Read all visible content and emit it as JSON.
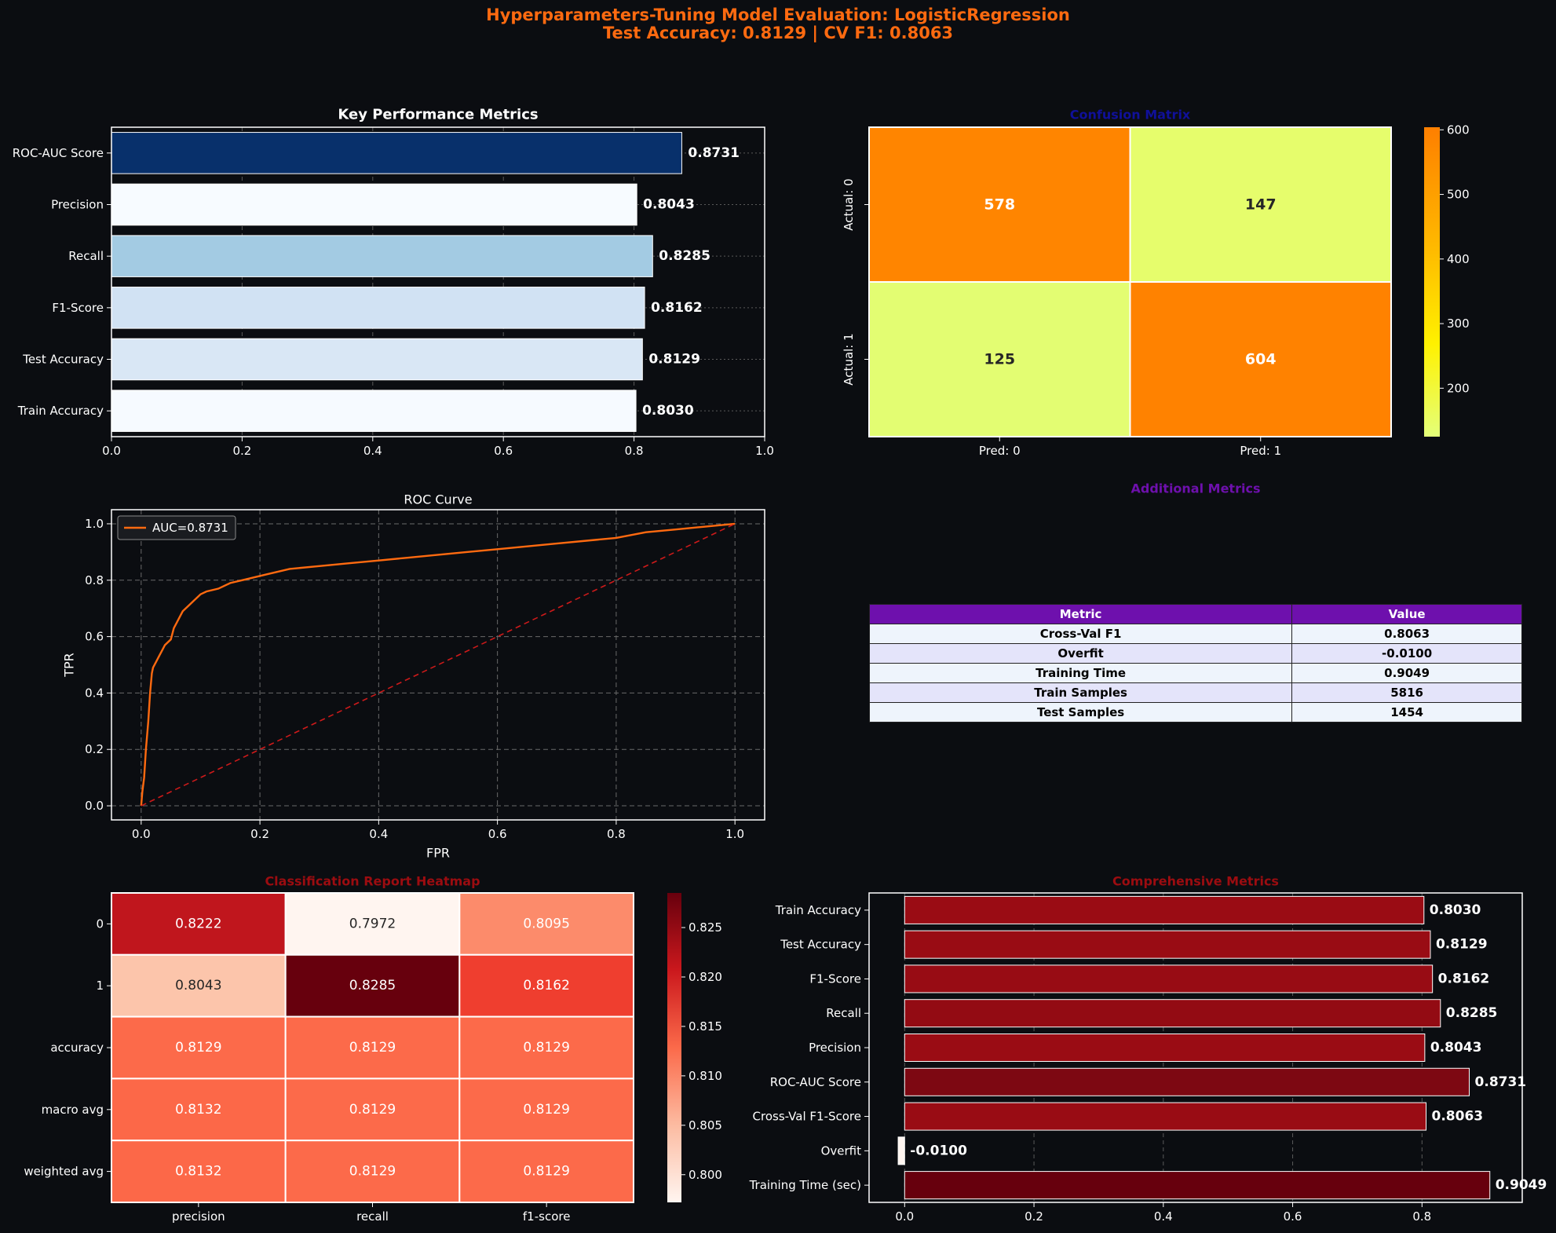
{
  "suptitle": {
    "line1": "Hyperparameters-Tuning Model Evaluation: LogisticRegression",
    "line2": "Test Accuracy: 0.8129 | CV F1: 0.8063"
  },
  "chart_data": [
    {
      "type": "bar",
      "title": "Key Performance Metrics",
      "orientation": "horizontal",
      "categories": [
        "ROC-AUC Score",
        "Precision",
        "Recall",
        "F1-Score",
        "Test Accuracy",
        "Train Accuracy"
      ],
      "values": [
        0.8731,
        0.8043,
        0.8285,
        0.8162,
        0.8129,
        0.803
      ],
      "value_labels": [
        "0.8731",
        "0.8043",
        "0.8285",
        "0.8162",
        "0.8129",
        "0.8030"
      ],
      "colors": [
        "#08306b",
        "#f7fbff",
        "#a3cbe3",
        "#d1e2f3",
        "#d9e7f5",
        "#f6faff"
      ],
      "xlim": [
        0,
        1.0
      ],
      "xticks": [
        "0.0",
        "0.2",
        "0.4",
        "0.6",
        "0.8",
        "1.0"
      ],
      "grid": true
    },
    {
      "type": "heatmap",
      "title": "Confusion Matrix",
      "title_color": "#10109a",
      "rows": [
        "Actual: 0",
        "Actual: 1"
      ],
      "cols": [
        "Pred: 0",
        "Pred: 1"
      ],
      "values": [
        [
          578,
          147
        ],
        [
          125,
          604
        ]
      ],
      "cell_colors": [
        [
          "#ff8500",
          "#e6fd6c"
        ],
        [
          "#e3fd72",
          "#ff8200"
        ]
      ],
      "colorbar": {
        "ticks": [
          "600",
          "500",
          "400",
          "300",
          "200"
        ],
        "tick_values": [
          600,
          500,
          400,
          300,
          200
        ],
        "vmin": 125,
        "vmax": 604
      }
    },
    {
      "type": "line",
      "title": "ROC Curve",
      "xlabel": "FPR",
      "ylabel": "TPR",
      "xlim": [
        -0.05,
        1.05
      ],
      "ylim": [
        -0.05,
        1.05
      ],
      "xticks": [
        "0.0",
        "0.2",
        "0.4",
        "0.6",
        "0.8",
        "1.0"
      ],
      "yticks": [
        "0.0",
        "0.2",
        "0.4",
        "0.6",
        "0.8",
        "1.0"
      ],
      "grid": true,
      "legend": "upper left",
      "series": [
        {
          "name": "AUC=0.8731",
          "color": "#ff6a10",
          "x": [
            0,
            0.002,
            0.005,
            0.008,
            0.012,
            0.015,
            0.018,
            0.02,
            0.025,
            0.03,
            0.035,
            0.04,
            0.05,
            0.055,
            0.06,
            0.065,
            0.07,
            0.08,
            0.09,
            0.1,
            0.11,
            0.13,
            0.15,
            0.17,
            0.19,
            0.21,
            0.25,
            0.3,
            0.35,
            0.4,
            0.45,
            0.5,
            0.55,
            0.6,
            0.65,
            0.7,
            0.75,
            0.8,
            0.85,
            0.9,
            0.95,
            1.0
          ],
          "y": [
            0,
            0.05,
            0.1,
            0.2,
            0.3,
            0.4,
            0.47,
            0.49,
            0.51,
            0.53,
            0.55,
            0.57,
            0.59,
            0.63,
            0.65,
            0.67,
            0.69,
            0.71,
            0.73,
            0.75,
            0.76,
            0.77,
            0.79,
            0.8,
            0.81,
            0.82,
            0.84,
            0.85,
            0.86,
            0.87,
            0.88,
            0.89,
            0.9,
            0.91,
            0.92,
            0.93,
            0.94,
            0.95,
            0.97,
            0.98,
            0.99,
            1.0
          ]
        },
        {
          "name": "",
          "color": "#cc1a1a",
          "dashed": true,
          "x": [
            0,
            1
          ],
          "y": [
            0,
            1
          ]
        }
      ]
    },
    {
      "type": "table",
      "title": "Additional Metrics",
      "title_color": "#6e10ad",
      "columns": [
        "Metric",
        "Value"
      ],
      "rows": [
        [
          "Cross-Val F1",
          "0.8063"
        ],
        [
          "Overfit",
          "-0.0100"
        ],
        [
          "Training Time",
          "0.9049"
        ],
        [
          "Train Samples",
          "5816"
        ],
        [
          "Test Samples",
          "1454"
        ]
      ]
    },
    {
      "type": "heatmap",
      "title": "Classification Report Heatmap",
      "title_color": "#9c0c10",
      "rows": [
        "0",
        "1",
        "accuracy",
        "macro avg",
        "weighted avg"
      ],
      "cols": [
        "precision",
        "recall",
        "f1-score"
      ],
      "values": [
        [
          0.8222,
          0.7972,
          0.8095
        ],
        [
          0.8043,
          0.8285,
          0.8162
        ],
        [
          0.8129,
          0.8129,
          0.8129
        ],
        [
          0.8132,
          0.8129,
          0.8129
        ],
        [
          0.8132,
          0.8129,
          0.8129
        ]
      ],
      "cell_labels": [
        [
          "0.8222",
          "0.7972",
          "0.8095"
        ],
        [
          "0.8043",
          "0.8285",
          "0.8162"
        ],
        [
          "0.8129",
          "0.8129",
          "0.8129"
        ],
        [
          "0.8132",
          "0.8129",
          "0.8129"
        ],
        [
          "0.8132",
          "0.8129",
          "0.8129"
        ]
      ],
      "cell_colors": [
        [
          "#c0161d",
          "#fff5f0",
          "#fc8b6b"
        ],
        [
          "#fcc5ab",
          "#67000d",
          "#ef3e2f"
        ],
        [
          "#fc6a4a",
          "#fc6a4a",
          "#fc6a4a"
        ],
        [
          "#fc6848",
          "#fc6a4a",
          "#fc6a4a"
        ],
        [
          "#fc6848",
          "#fc6a4a",
          "#fc6a4a"
        ]
      ],
      "colorbar": {
        "ticks": [
          "0.825",
          "0.820",
          "0.815",
          "0.810",
          "0.805",
          "0.800"
        ],
        "tick_values": [
          0.825,
          0.82,
          0.815,
          0.81,
          0.805,
          0.8
        ],
        "vmin": 0.7972,
        "vmax": 0.8285
      }
    },
    {
      "type": "bar",
      "title": "Comprehensive Metrics",
      "title_color": "#9c0c10",
      "orientation": "horizontal",
      "categories": [
        "Train Accuracy",
        "Test Accuracy",
        "F1-Score",
        "Recall",
        "Precision",
        "ROC-AUC Score",
        "Cross-Val F1-Score",
        "Overfit",
        "Training Time (sec)"
      ],
      "values": [
        0.803,
        0.8129,
        0.8162,
        0.8285,
        0.8043,
        0.8731,
        0.8063,
        -0.01,
        0.9049
      ],
      "value_labels": [
        "0.8030",
        "0.8129",
        "0.8162",
        "0.8285",
        "0.8043",
        "0.8731",
        "0.8063",
        "-0.0100",
        "0.9049"
      ],
      "colors": [
        "#9a0c14",
        "#990c14",
        "#980c14",
        "#930b13",
        "#9a0c14",
        "#7d0812",
        "#990c14",
        "#fff5f0",
        "#67000d"
      ],
      "xlim": [
        -0.055,
        0.955
      ],
      "xticks": [
        "0.0",
        "0.2",
        "0.4",
        "0.6",
        "0.8"
      ],
      "xtick_values": [
        0,
        0.2,
        0.4,
        0.6,
        0.8
      ],
      "grid": true
    }
  ]
}
